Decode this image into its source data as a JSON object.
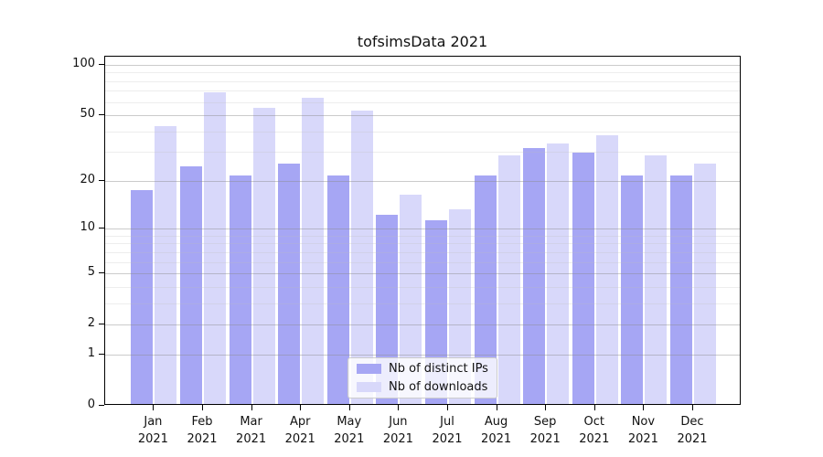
{
  "chart_data": {
    "type": "bar",
    "title": "tofsimsData 2021",
    "categories": [
      "Jan 2021",
      "Feb 2021",
      "Mar 2021",
      "Apr 2021",
      "May 2021",
      "Jun 2021",
      "Jul 2021",
      "Aug 2021",
      "Sep 2021",
      "Oct 2021",
      "Nov 2021",
      "Dec 2021"
    ],
    "series": [
      {
        "name": "Nb of distinct IPs",
        "color": "#a6a6f4",
        "values": [
          17,
          24,
          21,
          25,
          21,
          12,
          11,
          21,
          31,
          29,
          21,
          21
        ]
      },
      {
        "name": "Nb of downloads",
        "color": "#d8d8fa",
        "values": [
          42,
          67,
          54,
          62,
          52,
          16,
          13,
          28,
          33,
          37,
          28,
          25
        ]
      }
    ],
    "xlabel": "",
    "ylabel": "",
    "yscale": "log1p",
    "y_major_ticks": [
      0,
      1,
      2,
      5,
      10,
      20,
      50,
      100
    ],
    "y_minor_gridlines": [
      3,
      4,
      6,
      7,
      8,
      9,
      30,
      40,
      60,
      70,
      80,
      90
    ],
    "ylim": [
      0,
      112
    ],
    "grid": "on",
    "legend_position": "lower center"
  },
  "colors": {
    "background": "#ffffff",
    "bar_distinct_ips": "#a6a6f4",
    "bar_downloads": "#d8d8fa",
    "major_grid": "#9a9a9a",
    "minor_grid": "#dedede",
    "spine": "#000000",
    "text": "#111111"
  }
}
